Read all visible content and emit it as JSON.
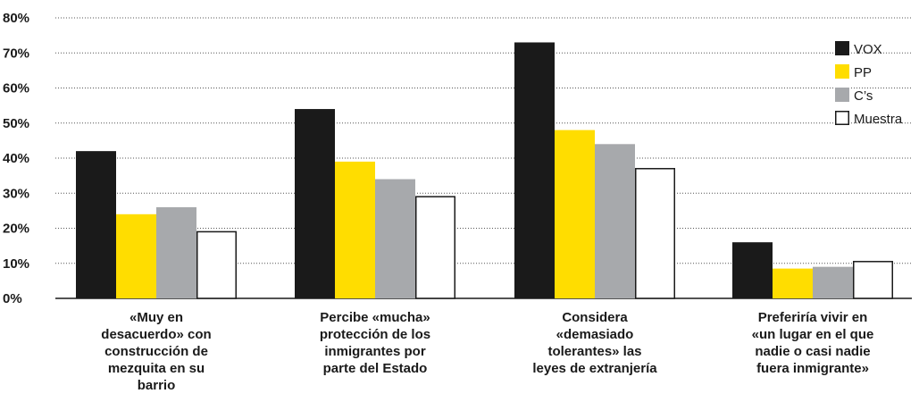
{
  "chart_data": {
    "type": "bar",
    "categories": [
      "«Muy en\ndesacuerdo» con\nconstrucción de\nmezquita en su\nbarrio",
      "Percibe «mucha»\nprotección de los\ninmigrantes por\nparte del Estado",
      "Considera\n«demasiado\ntolerantes» las\nleyes de extranjería",
      "Preferiría vivir en\n«un lugar en el que\nnadie o casi nadie\nfuera inmigrante»"
    ],
    "series": [
      {
        "name": "VOX",
        "color": "#1a1a1a",
        "values": [
          42,
          54,
          73,
          16
        ]
      },
      {
        "name": "PP",
        "color": "#ffdd00",
        "values": [
          24,
          39,
          48,
          8.5
        ]
      },
      {
        "name": "C’s",
        "color": "#a7a9ac",
        "values": [
          26,
          34,
          44,
          9
        ]
      },
      {
        "name": "Muestra",
        "color": "#ffffff",
        "values": [
          19,
          29,
          37,
          10.5
        ]
      }
    ],
    "ylim": [
      0,
      80
    ],
    "yticks": [
      "0%",
      "10%",
      "20%",
      "30%",
      "40%",
      "50%",
      "60%",
      "70%",
      "80%"
    ],
    "grid": true,
    "legend_position": "top-right"
  }
}
